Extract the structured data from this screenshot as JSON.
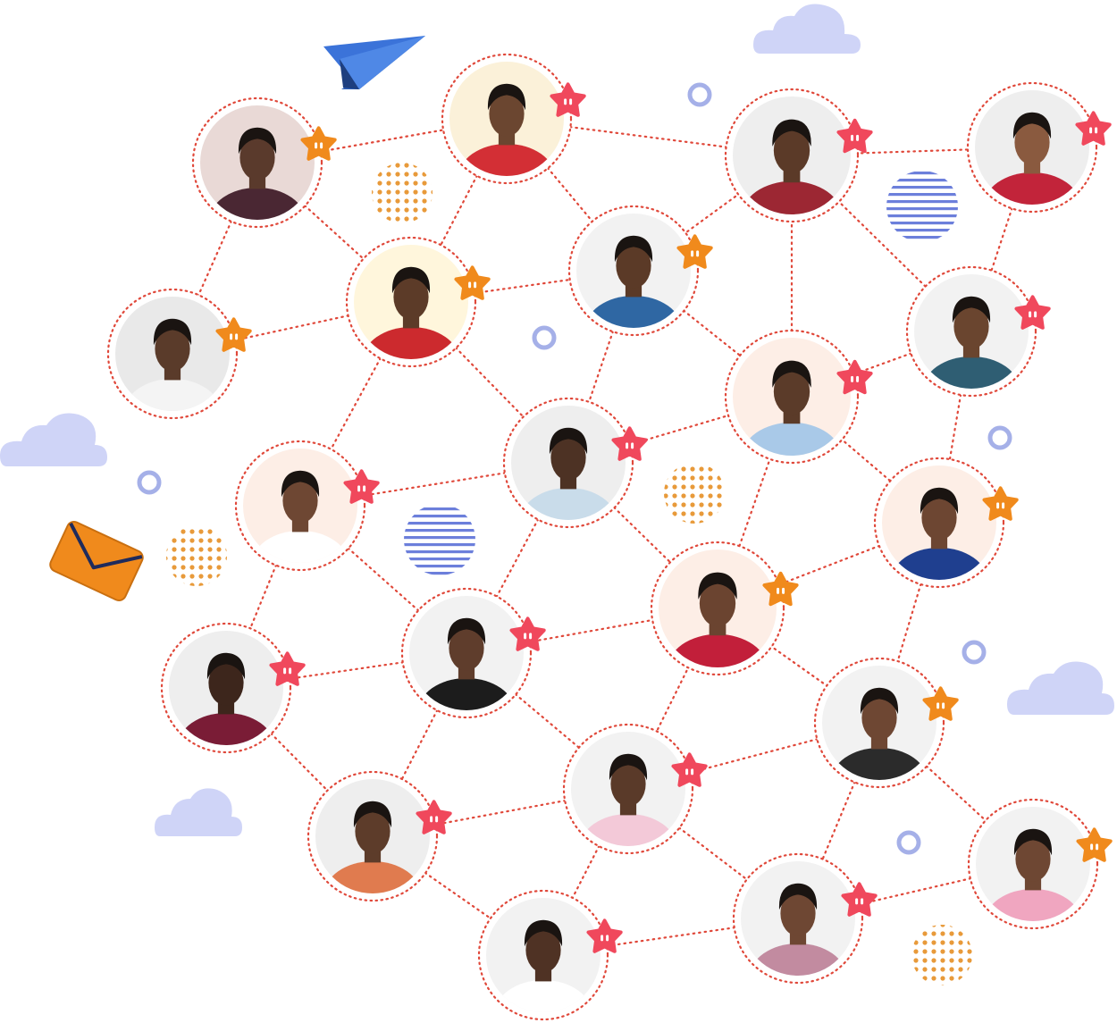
{
  "palette": {
    "background": "#ffffff",
    "connector": "#e0483a",
    "star_red": "#f0485c",
    "star_orange": "#f08a1c",
    "dot_orange": "#e89a3a",
    "stripe_blue": "#6c7fdb",
    "cloud": "#cfd4f7",
    "ring_blue": "#5b6fd6",
    "plane_blue": "#3b73d9",
    "envelope_orange": "#f08a1c"
  },
  "decor_icons": [
    "paper-plane-icon",
    "envelope-icon",
    "cloud-icon",
    "star-badge-icon"
  ],
  "people": [
    {
      "id": "p1",
      "shirt": "#4a2733",
      "skin": "#5a3a2c",
      "bg": "#e9d9d6",
      "badge": "orange"
    },
    {
      "id": "p2",
      "shirt": "#d32f35",
      "skin": "#6b4630",
      "bg": "#fbf1d9",
      "badge": "red"
    },
    {
      "id": "p3",
      "shirt": "#9c2733",
      "skin": "#5b3a28",
      "bg": "#eeeeee",
      "badge": "red"
    },
    {
      "id": "p4",
      "shirt": "#c2243a",
      "skin": "#8a5a3f",
      "bg": "#eeeeee",
      "badge": "red"
    },
    {
      "id": "p5",
      "shirt": "#cc2a2e",
      "skin": "#5c3b28",
      "bg": "#fff6dc",
      "badge": "orange"
    },
    {
      "id": "p6",
      "shirt": "#2f67a3",
      "skin": "#5b3a27",
      "bg": "#f2f2f2",
      "badge": "orange"
    },
    {
      "id": "p7",
      "shirt": "#f4f4f4",
      "skin": "#5a3b2a",
      "bg": "#e9e9e9",
      "badge": "orange"
    },
    {
      "id": "p8",
      "shirt": "#2f5e73",
      "skin": "#6a452f",
      "bg": "#f2f2f2",
      "badge": "red"
    },
    {
      "id": "p9",
      "shirt": "#a9c9e8",
      "skin": "#5b3b29",
      "bg": "#fdeee6",
      "badge": "red"
    },
    {
      "id": "p10",
      "shirt": "#c9dcea",
      "skin": "#4d3224",
      "bg": "#eeeeee",
      "badge": "red"
    },
    {
      "id": "p11",
      "shirt": "#ffffff",
      "skin": "#6e4733",
      "bg": "#fdeee6",
      "badge": "red"
    },
    {
      "id": "p12",
      "shirt": "#1f3f8f",
      "skin": "#6d4632",
      "bg": "#fdeee6",
      "badge": "orange"
    },
    {
      "id": "p13",
      "shirt": "#c21f3a",
      "skin": "#6b4430",
      "bg": "#fdeee6",
      "badge": "orange"
    },
    {
      "id": "p14",
      "shirt": "#1c1c1c",
      "skin": "#5f3d2c",
      "bg": "#f2f2f2",
      "badge": "red"
    },
    {
      "id": "p15",
      "shirt": "#7a1c36",
      "skin": "#3d261c",
      "bg": "#eeeeee",
      "badge": "red"
    },
    {
      "id": "p16",
      "shirt": "#2b2b2b",
      "skin": "#6e4733",
      "bg": "#f2f2f2",
      "badge": "orange"
    },
    {
      "id": "p17",
      "shirt": "#f3c9d8",
      "skin": "#5a3a29",
      "bg": "#f2f2f2",
      "badge": "red"
    },
    {
      "id": "p18",
      "shirt": "#e07b4f",
      "skin": "#5d3c2a",
      "bg": "#eeeeee",
      "badge": "red"
    },
    {
      "id": "p19",
      "shirt": "#f0a6c0",
      "skin": "#6e4733",
      "bg": "#f2f2f2",
      "badge": "orange"
    },
    {
      "id": "p20",
      "shirt": "#c28ba0",
      "skin": "#6e4733",
      "bg": "#f2f2f2",
      "badge": "red"
    },
    {
      "id": "p21",
      "shirt": "#ffffff",
      "skin": "#4f3224",
      "bg": "#f2f2f2",
      "badge": "red"
    }
  ],
  "connections": [
    [
      "p1",
      "p2"
    ],
    [
      "p1",
      "p5"
    ],
    [
      "p1",
      "p7"
    ],
    [
      "p2",
      "p3"
    ],
    [
      "p2",
      "p5"
    ],
    [
      "p2",
      "p6"
    ],
    [
      "p3",
      "p4"
    ],
    [
      "p3",
      "p6"
    ],
    [
      "p3",
      "p8"
    ],
    [
      "p3",
      "p9"
    ],
    [
      "p4",
      "p8"
    ],
    [
      "p5",
      "p7"
    ],
    [
      "p5",
      "p10"
    ],
    [
      "p5",
      "p11"
    ],
    [
      "p5",
      "p6"
    ],
    [
      "p6",
      "p9"
    ],
    [
      "p6",
      "p10"
    ],
    [
      "p8",
      "p9"
    ],
    [
      "p8",
      "p12"
    ],
    [
      "p9",
      "p10"
    ],
    [
      "p9",
      "p12"
    ],
    [
      "p9",
      "p13"
    ],
    [
      "p10",
      "p11"
    ],
    [
      "p10",
      "p13"
    ],
    [
      "p10",
      "p14"
    ],
    [
      "p11",
      "p14"
    ],
    [
      "p11",
      "p15"
    ],
    [
      "p12",
      "p13"
    ],
    [
      "p12",
      "p16"
    ],
    [
      "p13",
      "p14"
    ],
    [
      "p13",
      "p16"
    ],
    [
      "p13",
      "p17"
    ],
    [
      "p14",
      "p15"
    ],
    [
      "p14",
      "p17"
    ],
    [
      "p14",
      "p18"
    ],
    [
      "p15",
      "p18"
    ],
    [
      "p16",
      "p17"
    ],
    [
      "p16",
      "p20"
    ],
    [
      "p16",
      "p19"
    ],
    [
      "p17",
      "p18"
    ],
    [
      "p17",
      "p21"
    ],
    [
      "p17",
      "p20"
    ],
    [
      "p18",
      "p21"
    ],
    [
      "p19",
      "p20"
    ],
    [
      "p20",
      "p21"
    ]
  ]
}
